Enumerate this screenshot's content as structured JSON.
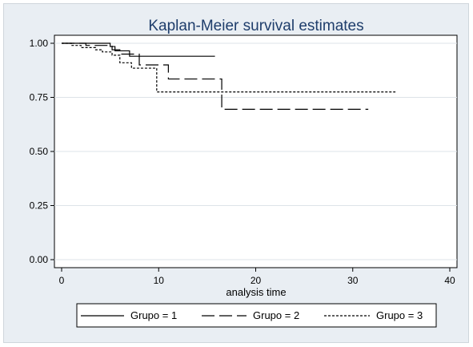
{
  "chart_data": {
    "type": "line",
    "step": true,
    "title": "Kaplan-Meier survival estimates",
    "xlabel": "analysis time",
    "ylabel": "",
    "xlim": [
      0,
      40
    ],
    "ylim": [
      0,
      1
    ],
    "xticks": [
      0,
      10,
      20,
      30,
      40
    ],
    "yticks": [
      0.0,
      0.25,
      0.5,
      0.75,
      1.0
    ],
    "xtick_labels": [
      "0",
      "10",
      "20",
      "30",
      "40"
    ],
    "ytick_labels": [
      "0.00",
      "0.25",
      "0.50",
      "0.75",
      "1.00"
    ],
    "grid": "horizontal",
    "legend_position": "bottom",
    "series": [
      {
        "name": "Grupo = 1",
        "dash": "solid",
        "x": [
          0,
          5.0,
          5.5,
          7.0,
          15.8
        ],
        "y": [
          1.0,
          0.985,
          0.965,
          0.94,
          0.94
        ]
      },
      {
        "name": "Grupo = 2",
        "dash": "longdash",
        "x": [
          0,
          2.5,
          5.2,
          6.0,
          8.0,
          11.0,
          16.5,
          31.6
        ],
        "y": [
          1.0,
          0.99,
          0.97,
          0.95,
          0.9,
          0.835,
          0.695,
          0.695
        ]
      },
      {
        "name": "Grupo = 3",
        "dash": "dotted",
        "x": [
          0,
          1.0,
          2.0,
          3.5,
          4.2,
          5.2,
          6.0,
          7.2,
          9.8,
          34.4
        ],
        "y": [
          1.0,
          0.99,
          0.98,
          0.97,
          0.96,
          0.945,
          0.91,
          0.885,
          0.775,
          0.775
        ]
      }
    ]
  }
}
